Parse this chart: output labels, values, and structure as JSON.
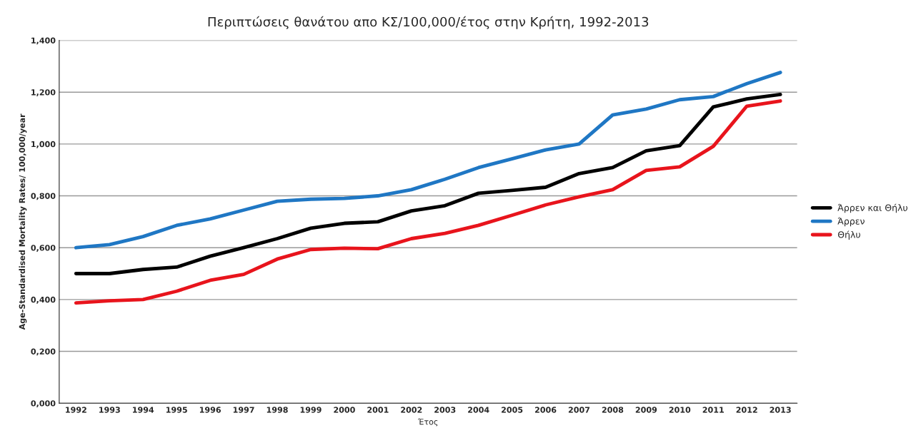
{
  "chart_data": {
    "type": "line",
    "title": "Περιπτώσεις θανάτου απο ΚΣ/100,000/έτος στην Κρήτη, 1992-2013",
    "xlabel": "Έτος",
    "ylabel": "Age-Standardised Mortality Rates/ 100,000/year",
    "categories": [
      "1992",
      "1993",
      "1994",
      "1995",
      "1996",
      "1997",
      "1998",
      "1999",
      "2000",
      "2001",
      "2002",
      "2003",
      "2004",
      "2005",
      "2006",
      "2007",
      "2008",
      "2009",
      "2010",
      "2011",
      "2012",
      "2013"
    ],
    "series": [
      {
        "name": "Άρρεν και Θήλυ",
        "color": "#000000",
        "values": [
          0.5,
          0.5,
          0.516,
          0.525,
          0.567,
          0.6,
          0.635,
          0.675,
          0.694,
          0.7,
          0.742,
          0.762,
          0.81,
          0.821,
          0.833,
          0.886,
          0.909,
          0.974,
          0.994,
          1.143,
          1.174,
          1.191
        ]
      },
      {
        "name": "Άρρεν",
        "color": "#1f77c4",
        "values": [
          0.6,
          0.612,
          0.643,
          0.686,
          0.711,
          0.745,
          0.779,
          0.787,
          0.79,
          0.8,
          0.824,
          0.864,
          0.909,
          0.943,
          0.977,
          1.0,
          1.112,
          1.135,
          1.171,
          1.183,
          1.233,
          1.276
        ]
      },
      {
        "name": "Θήλυ",
        "color": "#e8141c",
        "values": [
          0.387,
          0.395,
          0.4,
          0.432,
          0.474,
          0.497,
          0.556,
          0.593,
          0.598,
          0.596,
          0.635,
          0.655,
          0.686,
          0.725,
          0.765,
          0.796,
          0.824,
          0.898,
          0.912,
          0.991,
          1.146,
          1.166
        ]
      }
    ],
    "ylim": [
      0,
      1.4
    ],
    "yticks": [
      {
        "value": 0,
        "label": "0,000"
      },
      {
        "value": 0.2,
        "label": "0,200"
      },
      {
        "value": 0.4,
        "label": "0,400"
      },
      {
        "value": 0.6,
        "label": "0,600"
      },
      {
        "value": 0.8,
        "label": "0,800"
      },
      {
        "value": 1.0,
        "label": "1,000"
      },
      {
        "value": 1.2,
        "label": "1,200"
      },
      {
        "value": 1.4,
        "label": "1,400"
      }
    ],
    "grid": "y",
    "legend": "right",
    "marker": "none",
    "line_style": "solid"
  }
}
